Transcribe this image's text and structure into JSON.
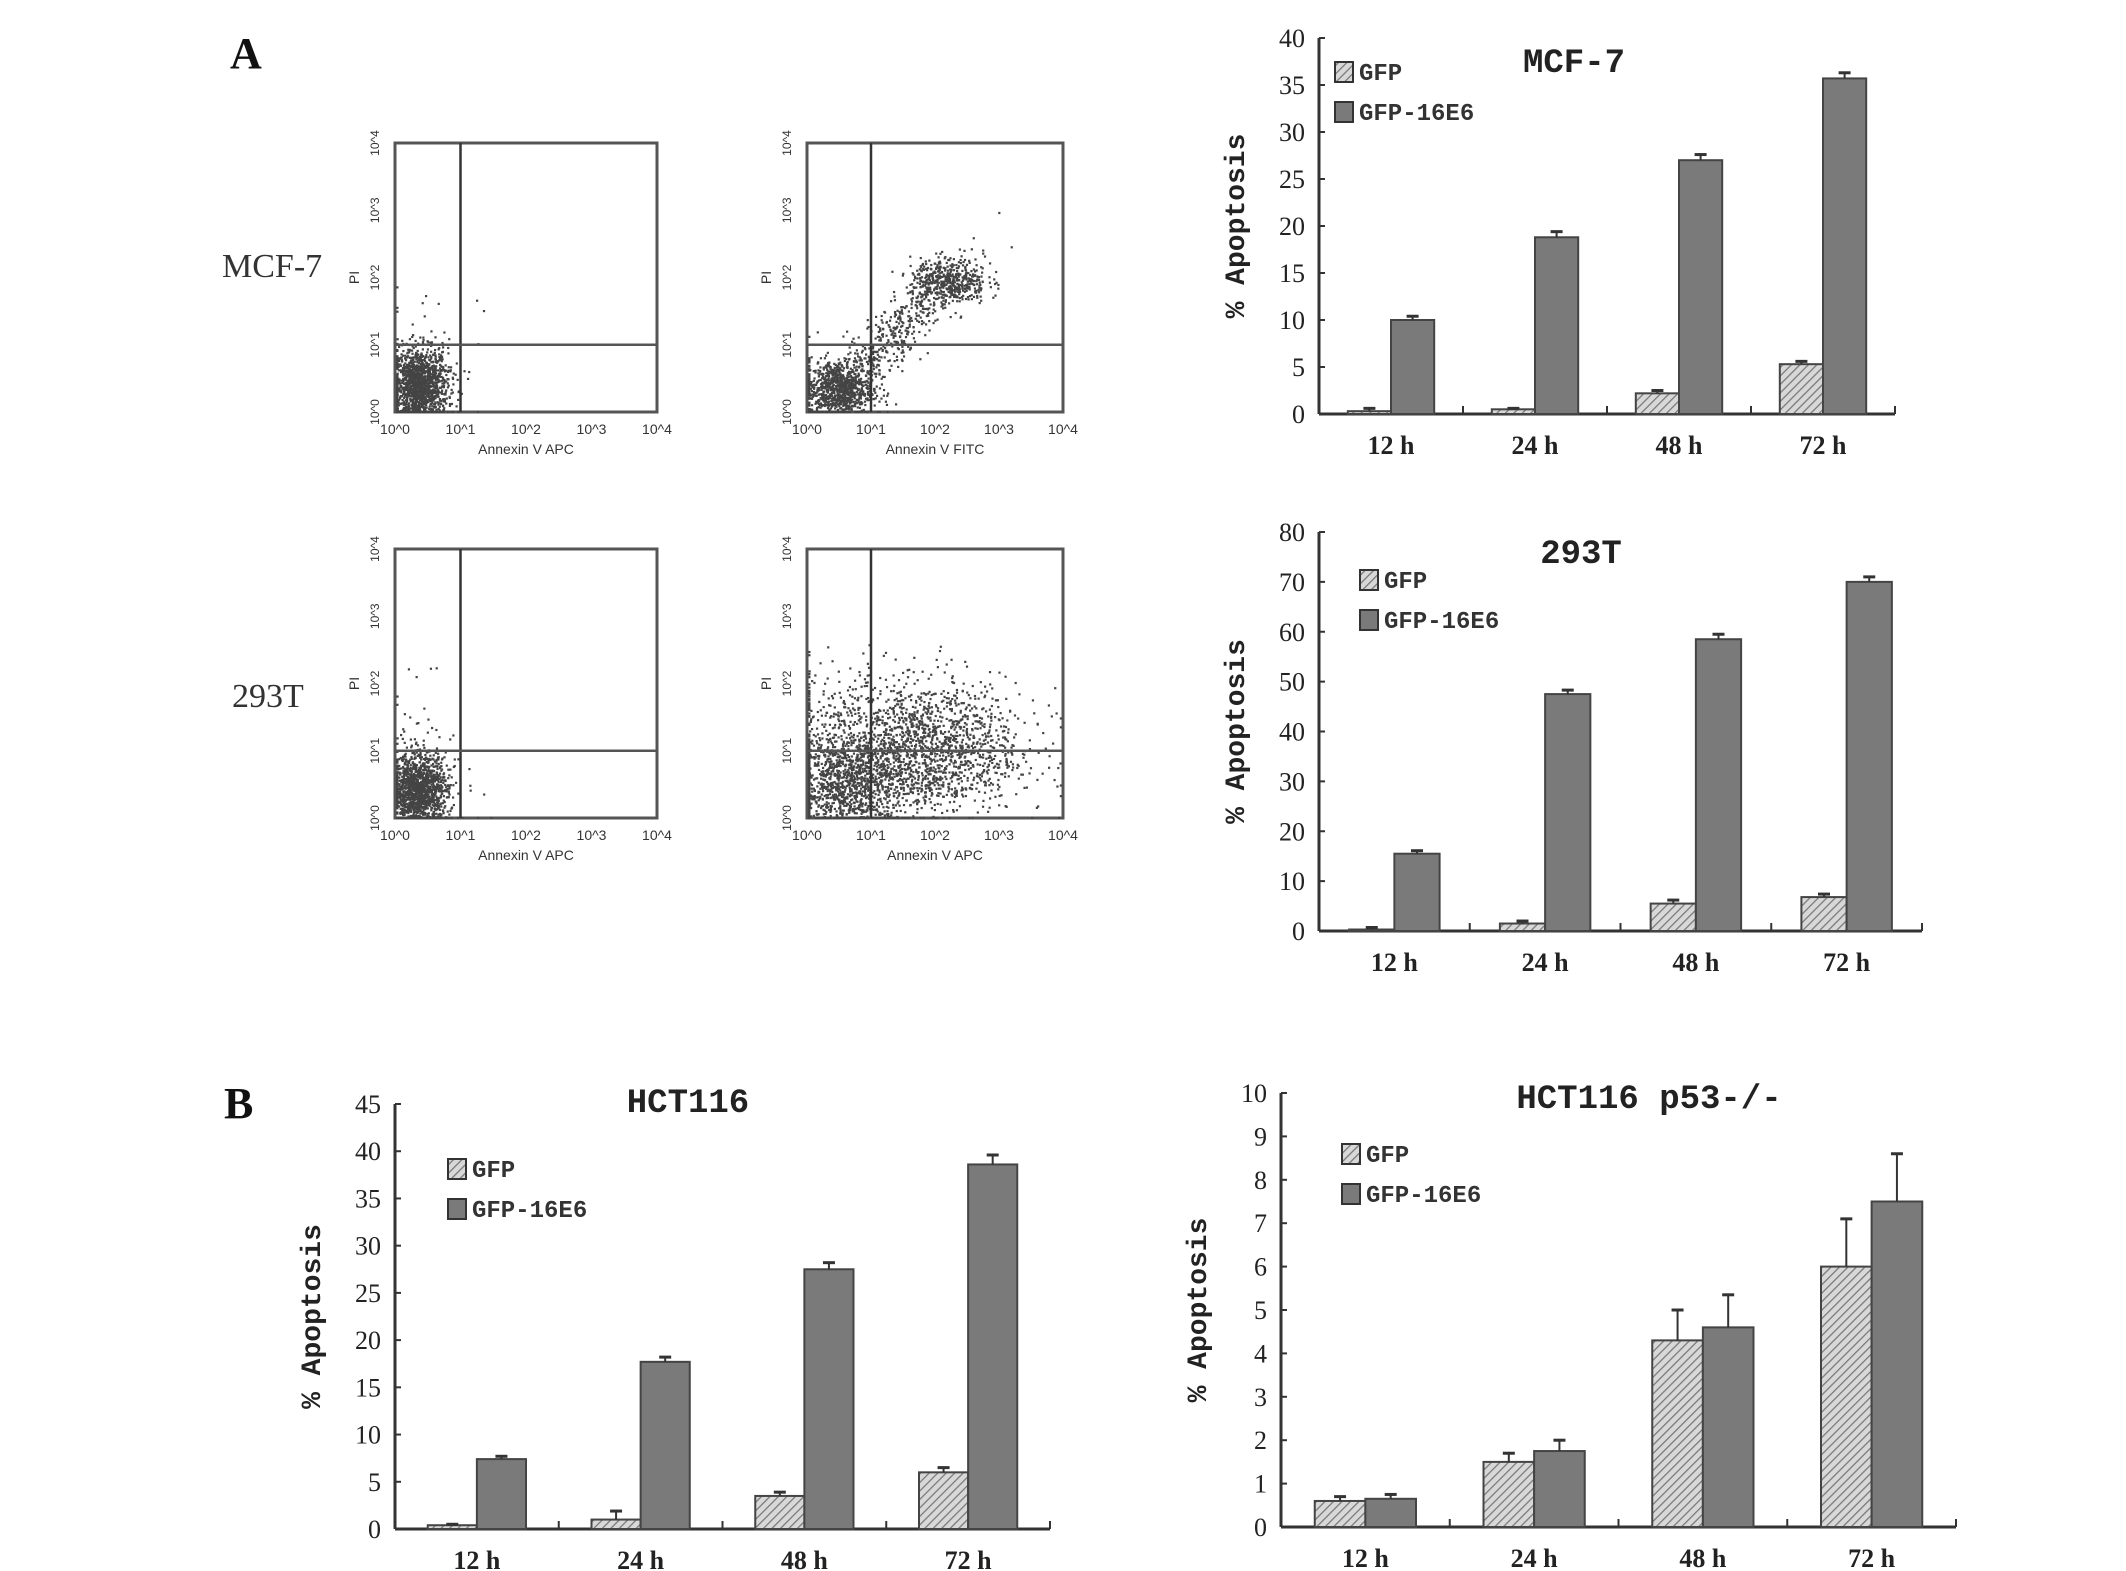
{
  "panel_labels": {
    "a": "A",
    "b": "B"
  },
  "row_labels": {
    "row1": "MCF-7",
    "row2": "293T"
  },
  "colors": {
    "bar_gfp16e6": "#7a7a7a",
    "bar_gfp_hatch": "#9a9a9a",
    "axis": "#333333",
    "dots": "#444444"
  },
  "flow_plots": [
    {
      "row": "MCF-7",
      "xlabel": "Annexin V APC",
      "ylabel": "PI",
      "ticks": [
        "10^0",
        "10^1",
        "10^2",
        "10^3",
        "10^4"
      ],
      "pattern": "viable-cluster"
    },
    {
      "row": "MCF-7",
      "xlabel": "Annexin V FITC",
      "ylabel": "PI",
      "ticks": [
        "10^0",
        "10^1",
        "10^2",
        "10^3",
        "10^4"
      ],
      "pattern": "diagonal-late-apoptotic"
    },
    {
      "row": "293T",
      "xlabel": "Annexin V APC",
      "ylabel": "PI",
      "ticks": [
        "10^0",
        "10^1",
        "10^2",
        "10^3",
        "10^4"
      ],
      "pattern": "viable-cluster"
    },
    {
      "row": "293T",
      "xlabel": "Annexin V APC",
      "ylabel": "PI",
      "ticks": [
        "10^0",
        "10^1",
        "10^2",
        "10^3",
        "10^4"
      ],
      "pattern": "spread-early-apoptotic"
    }
  ],
  "chart_data": [
    {
      "type": "bar",
      "title": "MCF-7",
      "ylabel": "% Apoptosis",
      "xlabel": "",
      "categories": [
        "12 h",
        "24 h",
        "48 h",
        "72 h"
      ],
      "ylim": [
        0,
        40
      ],
      "yticks": [
        0,
        5,
        10,
        15,
        20,
        25,
        30,
        35,
        40
      ],
      "legend_placement": "top-left",
      "grid": false,
      "series": [
        {
          "name": "GFP",
          "values": [
            0.3,
            0.5,
            2.2,
            5.3
          ],
          "errors": [
            0.3,
            0.1,
            0.3,
            0.3
          ],
          "fill": "hatched"
        },
        {
          "name": "GFP-16E6",
          "values": [
            10.0,
            18.8,
            27.0,
            35.7
          ],
          "errors": [
            0.4,
            0.6,
            0.6,
            0.6
          ],
          "fill": "solid"
        }
      ]
    },
    {
      "type": "bar",
      "title": "293T",
      "ylabel": "% Apoptosis",
      "xlabel": "",
      "categories": [
        "12 h",
        "24 h",
        "48 h",
        "72 h"
      ],
      "ylim": [
        0,
        80
      ],
      "yticks": [
        0,
        10,
        20,
        30,
        40,
        50,
        60,
        70,
        80
      ],
      "legend_placement": "top-left",
      "grid": false,
      "series": [
        {
          "name": "GFP",
          "values": [
            0.3,
            1.5,
            5.5,
            6.8
          ],
          "errors": [
            0.4,
            0.5,
            0.7,
            0.6
          ],
          "fill": "hatched"
        },
        {
          "name": "GFP-16E6",
          "values": [
            15.5,
            47.5,
            58.5,
            70.0
          ],
          "errors": [
            0.6,
            0.8,
            1.0,
            1.0
          ],
          "fill": "solid"
        }
      ]
    },
    {
      "type": "bar",
      "title": "HCT116",
      "ylabel": "% Apoptosis",
      "xlabel": "",
      "categories": [
        "12 h",
        "24 h",
        "48 h",
        "72 h"
      ],
      "ylim": [
        0,
        45
      ],
      "yticks": [
        0,
        5,
        10,
        15,
        20,
        25,
        30,
        35,
        40,
        45
      ],
      "legend_placement": "top-left",
      "grid": false,
      "series": [
        {
          "name": "GFP",
          "values": [
            0.4,
            1.0,
            3.5,
            6.0
          ],
          "errors": [
            0.1,
            0.9,
            0.4,
            0.5
          ],
          "fill": "hatched"
        },
        {
          "name": "GFP-16E6",
          "values": [
            7.4,
            17.7,
            27.5,
            38.6
          ],
          "errors": [
            0.3,
            0.5,
            0.7,
            1.0
          ],
          "fill": "solid"
        }
      ]
    },
    {
      "type": "bar",
      "title": "HCT116 p53-/-",
      "ylabel": "% Apoptosis",
      "xlabel": "",
      "categories": [
        "12 h",
        "24 h",
        "48 h",
        "72 h"
      ],
      "ylim": [
        0,
        10
      ],
      "yticks": [
        0,
        1,
        2,
        3,
        4,
        5,
        6,
        7,
        8,
        9,
        10
      ],
      "legend_placement": "top-left",
      "grid": false,
      "series": [
        {
          "name": "GFP",
          "values": [
            0.6,
            1.5,
            4.3,
            6.0
          ],
          "errors": [
            0.1,
            0.2,
            0.7,
            1.1
          ],
          "fill": "hatched"
        },
        {
          "name": "GFP-16E6",
          "values": [
            0.65,
            1.75,
            4.6,
            7.5
          ],
          "errors": [
            0.1,
            0.25,
            0.75,
            1.1
          ],
          "fill": "solid"
        }
      ]
    }
  ]
}
